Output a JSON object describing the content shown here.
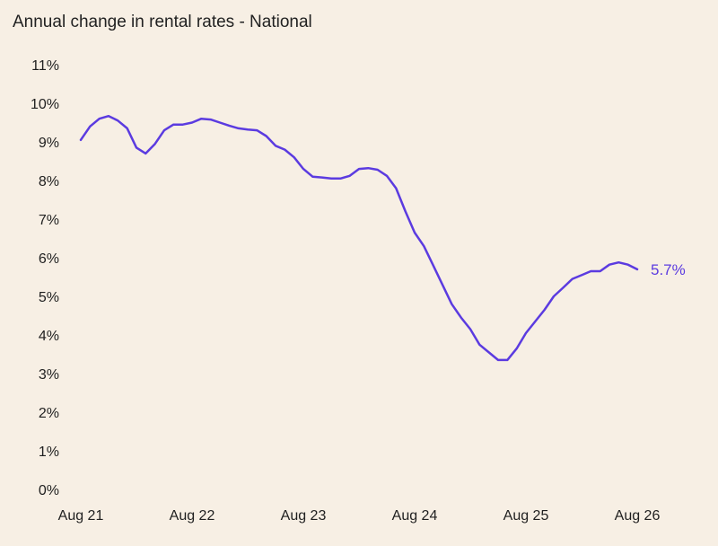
{
  "chart_data": {
    "type": "line",
    "title": "Annual change in rental rates - National",
    "xlabel": "",
    "ylabel": "",
    "grid": false,
    "legend": "none",
    "line_color": "#5b3be0",
    "y_ticks": [
      "0%",
      "1%",
      "2%",
      "3%",
      "4%",
      "5%",
      "6%",
      "7%",
      "8%",
      "9%",
      "10%",
      "11%"
    ],
    "x_ticks": [
      "Aug 21",
      "Aug 22",
      "Aug 23",
      "Aug 24",
      "Aug 25",
      "Aug 26"
    ],
    "ylim": [
      0,
      11
    ],
    "xlim_months": [
      0,
      60
    ],
    "end_label": "5.7%",
    "series": [
      {
        "x": [
          0,
          1,
          2,
          3,
          4,
          5,
          6,
          7,
          8,
          9,
          10,
          11,
          12,
          13,
          14,
          15,
          16,
          17,
          18,
          19,
          20,
          21,
          22,
          23,
          24,
          25,
          26,
          27,
          28,
          29,
          30,
          31,
          32,
          33,
          34,
          35,
          36,
          37,
          38,
          39,
          40,
          41,
          42,
          43,
          44,
          45,
          46,
          47,
          48,
          49,
          50,
          51,
          52,
          53,
          54,
          55,
          56,
          57,
          58,
          59,
          60
        ],
        "values": [
          9.05,
          9.4,
          9.6,
          9.67,
          9.55,
          9.35,
          8.85,
          8.7,
          8.95,
          9.3,
          9.45,
          9.45,
          9.5,
          9.6,
          9.58,
          9.5,
          9.42,
          9.35,
          9.32,
          9.3,
          9.15,
          8.9,
          8.8,
          8.6,
          8.3,
          8.1,
          8.08,
          8.05,
          8.05,
          8.12,
          8.3,
          8.32,
          8.28,
          8.12,
          7.8,
          7.2,
          6.65,
          6.3,
          5.8,
          5.3,
          4.8,
          4.45,
          4.15,
          3.75,
          3.55,
          3.35,
          3.35,
          3.65,
          4.05,
          4.35,
          4.65,
          5.0,
          5.22,
          5.45,
          5.55,
          5.65,
          5.65,
          5.82,
          5.88,
          5.82,
          5.7
        ]
      }
    ]
  }
}
